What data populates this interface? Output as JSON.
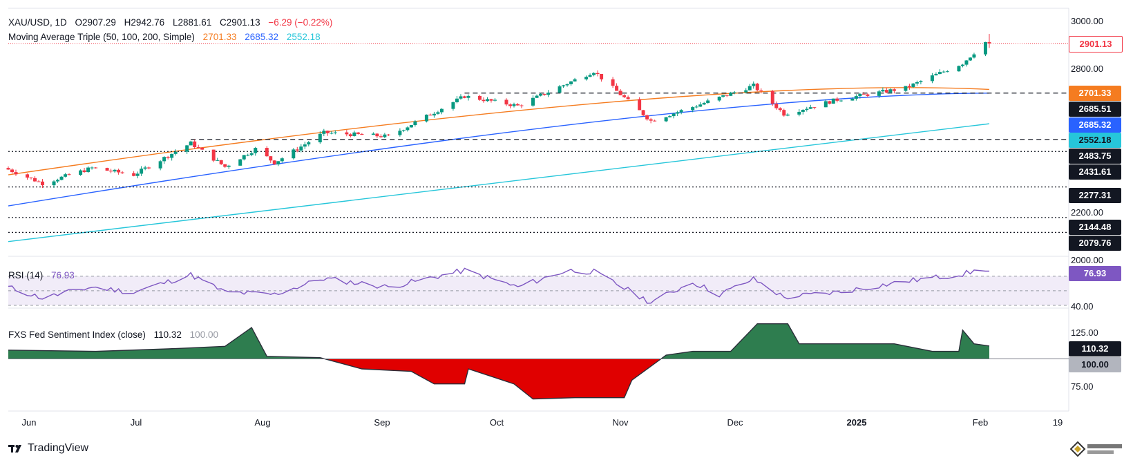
{
  "legend_main": {
    "symbol": "XAU/USD, 1D",
    "open": "O2907.29",
    "high": "H2942.76",
    "low": "L2881.61",
    "close": "C2901.13",
    "change": "−6.29 (−0.22%)",
    "ma_label": "Moving Average Triple (50, 100, 200, Simple)",
    "ma50": "2701.33",
    "ma100": "2685.32",
    "ma200": "2552.18"
  },
  "legend_rsi": {
    "label": "RSI (14)",
    "value": "76.93"
  },
  "legend_fxs": {
    "label": "FXS Fed Sentiment Index (close)",
    "value": "110.32",
    "base": "100.00"
  },
  "price_axis_ticks": [
    "3000.00",
    "2800.00",
    "2200.00",
    "2000.00"
  ],
  "price_boxes": [
    {
      "text": "2901.13",
      "value": 2901.13,
      "bg": "#ffffff",
      "fg": "#f23645",
      "border": "#f23645"
    },
    {
      "text": "2701.33",
      "value": 2701.33,
      "bg": "#f57c20",
      "fg": "#ffffff"
    },
    {
      "text": "2685.51",
      "value": 2685.51,
      "bg": "#131722",
      "fg": "#ffffff"
    },
    {
      "text": "2685.32",
      "value": 2685.32,
      "bg": "#2962ff",
      "fg": "#ffffff"
    },
    {
      "text": "2552.18",
      "value": 2552.18,
      "bg": "#26c6da",
      "fg": "#131722"
    },
    {
      "text": "2483.75",
      "value": 2483.75,
      "bg": "#131722",
      "fg": "#ffffff"
    },
    {
      "text": "2431.61",
      "value": 2431.61,
      "bg": "#131722",
      "fg": "#ffffff"
    },
    {
      "text": "2277.31",
      "value": 2277.31,
      "bg": "#131722",
      "fg": "#ffffff"
    },
    {
      "text": "2144.48",
      "value": 2144.48,
      "bg": "#131722",
      "fg": "#ffffff"
    },
    {
      "text": "2079.76",
      "value": 2079.76,
      "bg": "#131722",
      "fg": "#ffffff"
    }
  ],
  "rsi_axis_tick": "40.00",
  "rsi_box": {
    "text": "76.93",
    "bg": "#7e57c2",
    "fg": "#ffffff"
  },
  "fxs_axis_ticks": [
    "125.00",
    "75.00"
  ],
  "fxs_boxes": [
    {
      "text": "110.32",
      "bg": "#131722",
      "fg": "#ffffff"
    },
    {
      "text": "100.00",
      "bg": "#b2b5be",
      "fg": "#131722"
    }
  ],
  "x_ticks": [
    "Jun",
    "Jul",
    "Aug",
    "Sep",
    "Oct",
    "Nov",
    "Dec",
    "2025",
    "Feb",
    "19"
  ],
  "footer": {
    "brand": "TradingView"
  },
  "colors": {
    "up": "#089981",
    "down": "#f23645",
    "ma50": "#f57c20",
    "ma100": "#2962ff",
    "ma200": "#26c6da",
    "rsi": "#7e57c2",
    "rsi_band": "#ede7f6",
    "fxs_up": "#2e7d4f",
    "fxs_down": "#e00000"
  },
  "chart_data": [
    {
      "type": "candlestick",
      "title": "XAU/USD, 1D",
      "ylim": [
        2000,
        3000
      ],
      "x_range": [
        "2024-05-29",
        "2025-02-19"
      ],
      "anchors": [
        {
          "date": "2024-05-28",
          "close": 2360
        },
        {
          "date": "2024-06-07",
          "close": 2293
        },
        {
          "date": "2024-06-20",
          "close": 2360
        },
        {
          "date": "2024-07-01",
          "close": 2330
        },
        {
          "date": "2024-07-16",
          "close": 2468
        },
        {
          "date": "2024-07-25",
          "close": 2365
        },
        {
          "date": "2024-08-02",
          "close": 2443
        },
        {
          "date": "2024-08-07",
          "close": 2383
        },
        {
          "date": "2024-08-20",
          "close": 2513
        },
        {
          "date": "2024-09-06",
          "close": 2497
        },
        {
          "date": "2024-09-26",
          "close": 2672
        },
        {
          "date": "2024-10-10",
          "close": 2630
        },
        {
          "date": "2024-10-30",
          "close": 2780
        },
        {
          "date": "2024-11-14",
          "close": 2565
        },
        {
          "date": "2024-11-25",
          "close": 2625
        },
        {
          "date": "2024-12-11",
          "close": 2718
        },
        {
          "date": "2024-12-19",
          "close": 2595
        },
        {
          "date": "2025-01-02",
          "close": 2657
        },
        {
          "date": "2025-01-20",
          "close": 2708
        },
        {
          "date": "2025-02-04",
          "close": 2815
        },
        {
          "date": "2025-02-10",
          "close": 2907
        },
        {
          "date": "2025-02-11",
          "close": 2901.13
        }
      ],
      "last_candle": {
        "date": "2025-02-11",
        "open": 2907.29,
        "high": 2942.76,
        "low": 2881.61,
        "close": 2901.13
      },
      "moving_averages": [
        {
          "name": "MA 50",
          "start": [
            "2024-05-29",
            2330
          ],
          "mid": [
            "2024-10-30",
            2640
          ],
          "end": [
            "2025-02-11",
            2701.33
          ]
        },
        {
          "name": "MA 100",
          "start": [
            "2024-05-29",
            2195
          ],
          "mid": [
            "2024-10-30",
            2560
          ],
          "end": [
            "2025-02-11",
            2685.32
          ]
        },
        {
          "name": "MA 200",
          "start": [
            "2024-05-29",
            2040
          ],
          "mid": [
            "2024-10-30",
            2350
          ],
          "end": [
            "2025-02-11",
            2552.18
          ]
        }
      ],
      "horizontal_levels": [
        {
          "value": 2901.13,
          "style": "dotted-red"
        },
        {
          "value": 2685.51,
          "style": "dashed",
          "from": "2024-09-26"
        },
        {
          "value": 2483.75,
          "style": "dashed",
          "from": "2024-07-16"
        },
        {
          "value": 2431.61,
          "style": "dotted"
        },
        {
          "value": 2277.31,
          "style": "dotted"
        },
        {
          "value": 2144.48,
          "style": "dotted"
        },
        {
          "value": 2079.76,
          "style": "dotted"
        }
      ]
    },
    {
      "type": "line",
      "title": "RSI (14)",
      "ylim": [
        30,
        85
      ],
      "levels": [
        70,
        50,
        30
      ],
      "points": [
        [
          "2024-05-29",
          55
        ],
        [
          "2024-06-07",
          40
        ],
        [
          "2024-06-20",
          55
        ],
        [
          "2024-07-01",
          48
        ],
        [
          "2024-07-16",
          72
        ],
        [
          "2024-07-25",
          48
        ],
        [
          "2024-08-07",
          45
        ],
        [
          "2024-08-20",
          67
        ],
        [
          "2024-09-06",
          55
        ],
        [
          "2024-09-26",
          78
        ],
        [
          "2024-10-10",
          55
        ],
        [
          "2024-10-23",
          78
        ],
        [
          "2024-10-30",
          76
        ],
        [
          "2024-11-14",
          34
        ],
        [
          "2024-11-25",
          62
        ],
        [
          "2024-12-02",
          45
        ],
        [
          "2024-12-11",
          66
        ],
        [
          "2024-12-19",
          41
        ],
        [
          "2025-01-02",
          48
        ],
        [
          "2025-01-20",
          63
        ],
        [
          "2025-02-04",
          73
        ],
        [
          "2025-02-10",
          80
        ],
        [
          "2025-02-11",
          76.93
        ]
      ]
    },
    {
      "type": "area",
      "title": "FXS Fed Sentiment Index (close)",
      "ylim": [
        60,
        135
      ],
      "baseline": 100,
      "points": [
        [
          "2024-05-29",
          107
        ],
        [
          "2024-06-21",
          106
        ],
        [
          "2024-07-10",
          108
        ],
        [
          "2024-07-25",
          110
        ],
        [
          "2024-08-01",
          125
        ],
        [
          "2024-08-05",
          102
        ],
        [
          "2024-08-19",
          101
        ],
        [
          "2024-08-30",
          92
        ],
        [
          "2024-09-12",
          90
        ],
        [
          "2024-09-18",
          80
        ],
        [
          "2024-09-26",
          80
        ],
        [
          "2024-09-27",
          92
        ],
        [
          "2024-10-01",
          88
        ],
        [
          "2024-10-09",
          80
        ],
        [
          "2024-10-14",
          68
        ],
        [
          "2024-10-25",
          69
        ],
        [
          "2024-11-07",
          69
        ],
        [
          "2024-11-09",
          83
        ],
        [
          "2024-11-18",
          103
        ],
        [
          "2024-11-25",
          106
        ],
        [
          "2024-12-05",
          106
        ],
        [
          "2024-12-12",
          128
        ],
        [
          "2024-12-20",
          128
        ],
        [
          "2024-12-23",
          112
        ],
        [
          "2025-01-08",
          112
        ],
        [
          "2025-01-17",
          112
        ],
        [
          "2025-01-27",
          106
        ],
        [
          "2025-02-03",
          106
        ],
        [
          "2025-02-04",
          123
        ],
        [
          "2025-02-07",
          112
        ],
        [
          "2025-02-11",
          110.32
        ]
      ]
    }
  ]
}
